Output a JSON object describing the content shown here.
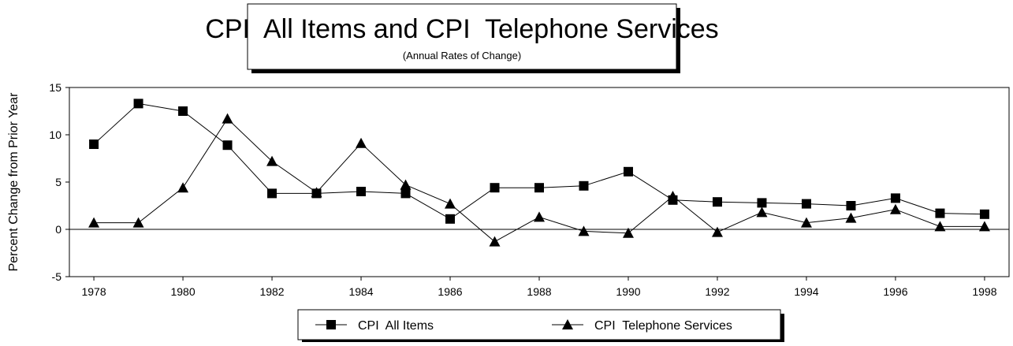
{
  "chart_data": {
    "type": "line",
    "title": "CPI  All Items and CPI  Telephone Services",
    "subtitle": "(Annual Rates of Change)",
    "y_label": "Percent Change from Prior Year",
    "x": [
      1978,
      1979,
      1980,
      1981,
      1982,
      1983,
      1984,
      1985,
      1986,
      1987,
      1988,
      1989,
      1990,
      1991,
      1992,
      1993,
      1994,
      1995,
      1996,
      1997,
      1998
    ],
    "series": [
      {
        "name": "CPI  All Items",
        "color": "#000000",
        "marker": "square",
        "values": [
          9.0,
          13.3,
          12.5,
          8.9,
          3.8,
          3.8,
          4.0,
          3.8,
          1.1,
          4.4,
          4.4,
          4.6,
          6.1,
          3.1,
          2.9,
          2.8,
          2.7,
          2.5,
          3.3,
          1.7,
          1.6
        ]
      },
      {
        "name": "CPI  Telephone Services",
        "color": "#000000",
        "marker": "triangle",
        "values": [
          0.7,
          0.7,
          4.4,
          11.7,
          7.2,
          3.9,
          9.1,
          4.7,
          2.7,
          -1.3,
          1.3,
          -0.2,
          -0.4,
          3.5,
          -0.3,
          1.8,
          0.7,
          1.2,
          2.1,
          0.3,
          0.3
        ]
      }
    ],
    "xlim": [
      1977.45,
      1998.55
    ],
    "xticks": [
      1978,
      1980,
      1982,
      1984,
      1986,
      1988,
      1990,
      1992,
      1994,
      1996,
      1998
    ],
    "ylim": [
      -5,
      15
    ],
    "yticks": [
      -5,
      0,
      5,
      10,
      15
    ],
    "zero_line": true,
    "legend": "bottom"
  }
}
